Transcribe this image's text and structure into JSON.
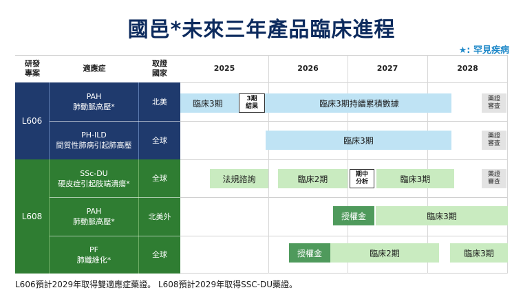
{
  "title": "國邑*未來三年產品臨床進程",
  "legend": "★: 罕見疾病",
  "headers": {
    "project": "研發\n專案",
    "indication": "適應症",
    "country": "取證\n國家",
    "years": [
      "2025",
      "2026",
      "2027",
      "2028"
    ]
  },
  "projects": [
    {
      "name": "L606"
    },
    {
      "name": "L608"
    }
  ],
  "rows": [
    {
      "indication": "PAH\n肺動脈高壓*",
      "country": "北美"
    },
    {
      "indication": "PH-ILD\n間質性肺病引起肺高壓",
      "country": "全球"
    },
    {
      "indication": "SSc-DU\n硬皮症引起肢端潰瘍*",
      "country": "全球"
    },
    {
      "indication": "PAH\n肺動脈高壓*",
      "country": "北美外"
    },
    {
      "indication": "PF\n肺纖維化*",
      "country": "全球"
    }
  ],
  "bars": {
    "r1_phase3": "臨床3期",
    "r1_result": "3期\n結果",
    "r1_continue": "臨床3期持續累積數據",
    "r1_license": "藥證\n審查",
    "r2_phase3": "臨床3期",
    "r2_license": "藥證\n審查",
    "r3_consult": "法規諮詢",
    "r3_phase2": "臨床2期",
    "r3_interim": "期中\n分析",
    "r3_phase3": "臨床3期",
    "r3_license": "藥證\n審查",
    "r4_grant": "授權金",
    "r4_phase3": "臨床3期",
    "r5_grant": "授權金",
    "r5_phase2": "臨床2期",
    "r5_phase3": "臨床3期"
  },
  "footer": "L606預計2029年取得雙適應症藥證。 L608預計2029年取得SSC-DU藥證。"
}
